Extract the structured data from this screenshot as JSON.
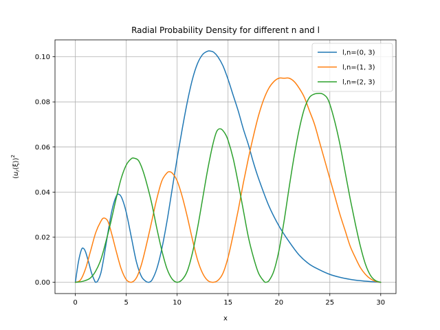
{
  "chart_data": {
    "type": "line",
    "title": "Radial Probability Density for different n and l",
    "xlabel": "x",
    "ylabel": "(u_r(ξ))²",
    "xlim": [
      -2,
      31.5
    ],
    "ylim": [
      -0.005,
      0.1075
    ],
    "xticks": [
      0,
      5,
      10,
      15,
      20,
      25,
      30
    ],
    "yticks": [
      0.0,
      0.02,
      0.04,
      0.06,
      0.08,
      0.1
    ],
    "xtick_labels": [
      "0",
      "5",
      "10",
      "15",
      "20",
      "25",
      "30"
    ],
    "ytick_labels": [
      "0.00",
      "0.02",
      "0.04",
      "0.06",
      "0.08",
      "0.10"
    ],
    "grid": true,
    "legend_position": "top-right",
    "series": [
      {
        "name": "l,n=(0, 3)",
        "color": "#1f77b4",
        "x": [
          0,
          0.3,
          0.6,
          0.8,
          1.0,
          1.3,
          1.6,
          1.9,
          2.0,
          2.2,
          2.5,
          2.8,
          3.2,
          3.6,
          4.0,
          4.3,
          4.6,
          5.0,
          5.5,
          6.0,
          6.5,
          7.0,
          7.2,
          7.5,
          8.0,
          8.5,
          9.0,
          9.5,
          10,
          10.5,
          11,
          11.5,
          12,
          12.5,
          13,
          13.3,
          13.6,
          14,
          14.5,
          15,
          15.5,
          16,
          16.5,
          17,
          17.5,
          18,
          19,
          20,
          21,
          22,
          23,
          24,
          25,
          26,
          27,
          28,
          29,
          30
        ],
        "y": [
          0,
          0.009,
          0.0145,
          0.015,
          0.0135,
          0.009,
          0.004,
          0.0006,
          0,
          0.0006,
          0.004,
          0.011,
          0.022,
          0.032,
          0.038,
          0.039,
          0.037,
          0.031,
          0.02,
          0.009,
          0.0025,
          0.0002,
          0,
          0.0008,
          0.006,
          0.015,
          0.027,
          0.041,
          0.055,
          0.068,
          0.08,
          0.09,
          0.097,
          0.101,
          0.1025,
          0.1025,
          0.102,
          0.1,
          0.096,
          0.09,
          0.083,
          0.076,
          0.068,
          0.061,
          0.053,
          0.046,
          0.034,
          0.025,
          0.018,
          0.012,
          0.008,
          0.0055,
          0.0035,
          0.0022,
          0.0013,
          0.0007,
          0.0003,
          0
        ]
      },
      {
        "name": "l,n=(1, 3)",
        "color": "#ff7f0e",
        "x": [
          0,
          0.5,
          1.0,
          1.5,
          2.0,
          2.5,
          2.8,
          3.2,
          3.6,
          4.0,
          4.5,
          5.0,
          5.5,
          6.0,
          6.5,
          7.0,
          7.5,
          8.0,
          8.5,
          9.0,
          9.3,
          9.6,
          10,
          10.5,
          11,
          11.5,
          12,
          12.5,
          13,
          13.5,
          14,
          14.5,
          15,
          15.5,
          16,
          16.5,
          17,
          17.5,
          18,
          18.5,
          19,
          19.5,
          20,
          20.5,
          21,
          21.5,
          22,
          22.5,
          23,
          23.5,
          24,
          24.5,
          25,
          25.5,
          26,
          26.5,
          27,
          27.5,
          28,
          28.5,
          29,
          29.5,
          30
        ],
        "y": [
          0,
          0.001,
          0.006,
          0.014,
          0.022,
          0.027,
          0.0285,
          0.027,
          0.021,
          0.014,
          0.006,
          0.0012,
          0,
          0.002,
          0.008,
          0.017,
          0.027,
          0.037,
          0.045,
          0.0485,
          0.049,
          0.048,
          0.045,
          0.038,
          0.029,
          0.019,
          0.01,
          0.004,
          0.0008,
          0,
          0.0008,
          0.004,
          0.011,
          0.021,
          0.032,
          0.044,
          0.055,
          0.065,
          0.074,
          0.081,
          0.086,
          0.089,
          0.0905,
          0.0905,
          0.0905,
          0.089,
          0.086,
          0.082,
          0.076,
          0.07,
          0.062,
          0.054,
          0.046,
          0.038,
          0.03,
          0.023,
          0.016,
          0.011,
          0.0065,
          0.0035,
          0.0015,
          0.0004,
          0
        ]
      },
      {
        "name": "l,n=(2, 3)",
        "color": "#2ca02c",
        "x": [
          0,
          0.5,
          1.0,
          1.5,
          2.0,
          2.5,
          3.0,
          3.5,
          4.0,
          4.5,
          5.0,
          5.5,
          5.8,
          6.2,
          6.6,
          7.0,
          7.5,
          8.0,
          8.5,
          9.0,
          9.5,
          10,
          10.5,
          11,
          11.5,
          12,
          12.5,
          13,
          13.5,
          13.9,
          14.3,
          14.7,
          15,
          15.5,
          16,
          16.5,
          17,
          17.5,
          18,
          18.5,
          18.7,
          19,
          19.5,
          20,
          20.5,
          21,
          21.5,
          22,
          22.5,
          23,
          23.5,
          24,
          24.3,
          24.7,
          25,
          25.5,
          26,
          26.5,
          27,
          27.5,
          28,
          28.5,
          29,
          29.5,
          30
        ],
        "y": [
          0,
          0.0002,
          0.0008,
          0.002,
          0.005,
          0.01,
          0.018,
          0.027,
          0.037,
          0.046,
          0.052,
          0.0548,
          0.055,
          0.054,
          0.05,
          0.044,
          0.035,
          0.024,
          0.014,
          0.006,
          0.0015,
          0,
          0.0012,
          0.005,
          0.013,
          0.024,
          0.037,
          0.05,
          0.061,
          0.067,
          0.068,
          0.066,
          0.063,
          0.055,
          0.044,
          0.032,
          0.02,
          0.011,
          0.004,
          0.0006,
          0,
          0.0006,
          0.005,
          0.014,
          0.027,
          0.042,
          0.056,
          0.068,
          0.077,
          0.082,
          0.0835,
          0.0838,
          0.0835,
          0.082,
          0.079,
          0.071,
          0.061,
          0.049,
          0.037,
          0.026,
          0.016,
          0.008,
          0.003,
          0.0007,
          0
        ]
      }
    ]
  }
}
